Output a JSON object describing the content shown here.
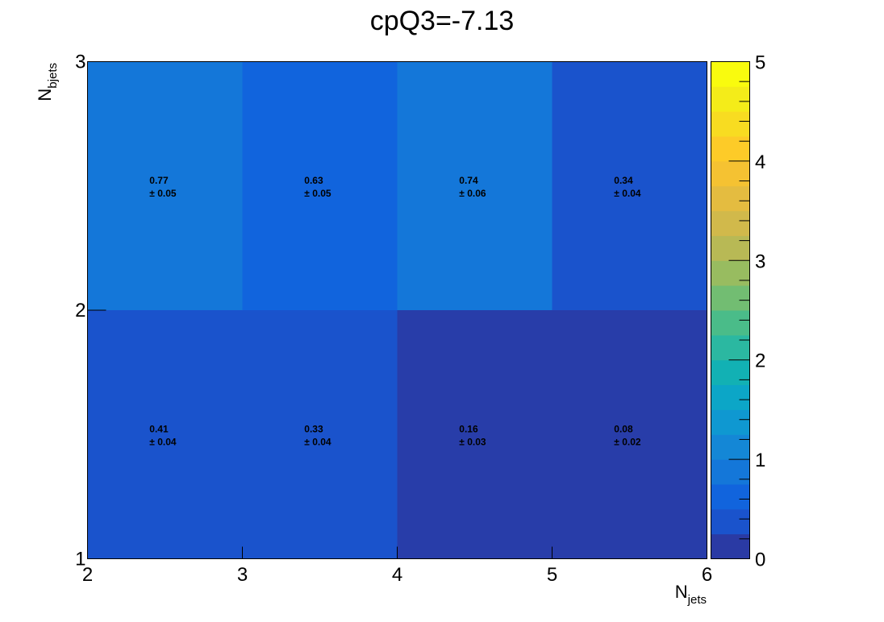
{
  "chart_data": {
    "type": "heatmap",
    "title": "cpQ3=-7.13",
    "xlabel": {
      "main": "N",
      "sub": "jets"
    },
    "ylabel": {
      "main": "N",
      "sub": "bjets"
    },
    "xlim": [
      2,
      6
    ],
    "ylim": [
      1,
      3
    ],
    "zlim": [
      0,
      5
    ],
    "x_bins": [
      2,
      3,
      4,
      5,
      6
    ],
    "y_bins": [
      1,
      2,
      3
    ],
    "x_ticks": [
      "2",
      "3",
      "4",
      "5",
      "6"
    ],
    "y_ticks": [
      "1",
      "2",
      "3"
    ],
    "z_ticks": [
      "0",
      "1",
      "2",
      "3",
      "4",
      "5"
    ],
    "cells": [
      {
        "x": [
          2,
          3
        ],
        "y": [
          2,
          3
        ],
        "value": "0.77",
        "error": "± 0.05",
        "color": "#1477d9"
      },
      {
        "x": [
          3,
          4
        ],
        "y": [
          2,
          3
        ],
        "value": "0.63",
        "error": "± 0.05",
        "color": "#1164dd"
      },
      {
        "x": [
          4,
          5
        ],
        "y": [
          2,
          3
        ],
        "value": "0.74",
        "error": "± 0.06",
        "color": "#1477d9"
      },
      {
        "x": [
          5,
          6
        ],
        "y": [
          2,
          3
        ],
        "value": "0.34",
        "error": "± 0.04",
        "color": "#1a53cc"
      },
      {
        "x": [
          2,
          3
        ],
        "y": [
          1,
          2
        ],
        "value": "0.41",
        "error": "± 0.04",
        "color": "#1a53cc"
      },
      {
        "x": [
          3,
          4
        ],
        "y": [
          1,
          2
        ],
        "value": "0.33",
        "error": "± 0.04",
        "color": "#1a53cc"
      },
      {
        "x": [
          4,
          5
        ],
        "y": [
          1,
          2
        ],
        "value": "0.16",
        "error": "± 0.03",
        "color": "#283da9"
      },
      {
        "x": [
          5,
          6
        ],
        "y": [
          1,
          2
        ],
        "value": "0.08",
        "error": "± 0.02",
        "color": "#283da9"
      }
    ],
    "palette": [
      "#2a3aa4",
      "#1a53cc",
      "#1164dd",
      "#1477d9",
      "#1487d6",
      "#0f98d1",
      "#0ca6c7",
      "#12b1b4",
      "#2bb8a1",
      "#4abc89",
      "#72bd72",
      "#98bc60",
      "#b8b955",
      "#d1b94b",
      "#e4bc40",
      "#f5c232",
      "#fdcb28",
      "#f8dc21",
      "#f4ec19",
      "#f9fb0e"
    ],
    "grid": false,
    "legend": "colorbar-right"
  }
}
